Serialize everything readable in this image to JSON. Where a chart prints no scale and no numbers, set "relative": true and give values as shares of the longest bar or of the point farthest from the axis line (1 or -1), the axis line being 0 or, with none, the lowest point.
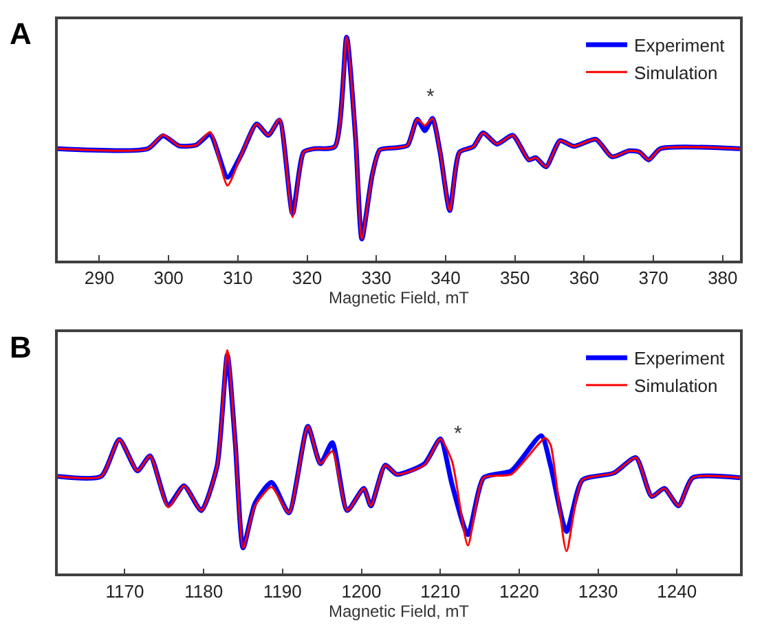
{
  "chart_data": [
    {
      "type": "line",
      "title": "A",
      "xlabel": "Magnetic Field, mT",
      "relative": true,
      "xlim": [
        284,
        382.5
      ],
      "xticks": [
        290,
        300,
        310,
        320,
        330,
        340,
        350,
        360,
        370,
        380
      ],
      "legend": "top right",
      "annotations": [
        {
          "text": "*",
          "x": 337,
          "y": 0.604
        }
      ],
      "series": [
        {
          "name": "Experiment",
          "color": "#0000ff",
          "x": [
            284,
            297,
            299.2,
            301.5,
            304,
            306,
            308.5,
            310.5,
            312.7,
            314.4,
            316,
            317.9,
            319.5,
            321,
            324,
            325.7,
            327,
            327.9,
            329.4,
            330.5,
            333,
            334.5,
            335.9,
            337,
            338.1,
            339.2,
            340.6,
            342,
            344,
            345.4,
            347.4,
            349.7,
            352,
            353,
            354.5,
            356.5,
            358.5,
            361.7,
            364,
            366.5,
            368,
            369.3,
            371,
            382.5
          ],
          "values": [
            0.5,
            0.5,
            0.558,
            0.513,
            0.517,
            0.564,
            0.372,
            0.474,
            0.611,
            0.56,
            0.628,
            0.209,
            0.485,
            0.5,
            0.509,
            1.0,
            0.546,
            0.096,
            0.382,
            0.495,
            0.505,
            0.515,
            0.632,
            0.581,
            0.636,
            0.485,
            0.223,
            0.485,
            0.509,
            0.571,
            0.521,
            0.56,
            0.45,
            0.46,
            0.419,
            0.536,
            0.511,
            0.542,
            0.464,
            0.491,
            0.485,
            0.45,
            0.5,
            0.5
          ]
        },
        {
          "name": "Simulation",
          "color": "#ff0000",
          "x": [
            284,
            297,
            299.2,
            301.5,
            304,
            306,
            308.5,
            310.5,
            312.7,
            314.4,
            316,
            317.9,
            319.5,
            321,
            324,
            325.7,
            327,
            327.9,
            329.4,
            330.5,
            333,
            334.5,
            335.9,
            337,
            338.1,
            339.2,
            340.6,
            342,
            344,
            345.4,
            347.4,
            349.7,
            352,
            353,
            354.5,
            356.5,
            358.5,
            361.7,
            364,
            366.5,
            368,
            369.3,
            371,
            382.5
          ],
          "values": [
            0.5,
            0.5,
            0.562,
            0.513,
            0.517,
            0.575,
            0.335,
            0.474,
            0.611,
            0.56,
            0.632,
            0.194,
            0.485,
            0.5,
            0.509,
            1.0,
            0.546,
            0.096,
            0.382,
            0.495,
            0.505,
            0.515,
            0.632,
            0.604,
            0.636,
            0.485,
            0.223,
            0.485,
            0.509,
            0.571,
            0.521,
            0.56,
            0.45,
            0.46,
            0.419,
            0.536,
            0.511,
            0.542,
            0.464,
            0.491,
            0.485,
            0.45,
            0.5,
            0.5
          ]
        }
      ]
    },
    {
      "type": "line",
      "title": "B",
      "xlabel": "Magnetic Field, mT",
      "relative": true,
      "xlim": [
        1161.5,
        1248
      ],
      "xticks": [
        1170,
        1180,
        1190,
        1200,
        1210,
        1220,
        1230,
        1240
      ],
      "legend": "top right",
      "annotations": [
        {
          "text": "*",
          "x": 1211.5,
          "y": 0.502
        }
      ],
      "series": [
        {
          "name": "Experiment",
          "color": "#0000ff",
          "x": [
            1161.5,
            1167,
            1169.3,
            1171.6,
            1173.2,
            1175.5,
            1177.5,
            1179.7,
            1181.7,
            1183,
            1184,
            1185,
            1186.5,
            1188.6,
            1190.8,
            1193.2,
            1194.8,
            1196.3,
            1198.2,
            1200.3,
            1201.2,
            1203,
            1204.5,
            1208,
            1210,
            1211.5,
            1213.5,
            1215.5,
            1219,
            1222.8,
            1224,
            1226,
            1228,
            1232,
            1234.8,
            1236.8,
            1238.4,
            1240.2,
            1242,
            1248
          ],
          "values": [
            0.435,
            0.435,
            0.6,
            0.46,
            0.527,
            0.305,
            0.393,
            0.282,
            0.481,
            0.979,
            0.586,
            0.115,
            0.314,
            0.408,
            0.272,
            0.659,
            0.492,
            0.586,
            0.282,
            0.381,
            0.303,
            0.485,
            0.444,
            0.492,
            0.603,
            0.397,
            0.174,
            0.429,
            0.46,
            0.617,
            0.481,
            0.188,
            0.418,
            0.45,
            0.519,
            0.345,
            0.381,
            0.303,
            0.429,
            0.429
          ]
        },
        {
          "name": "Simulation",
          "color": "#ff0000",
          "x": [
            1161.5,
            1167,
            1169.3,
            1171.6,
            1173.2,
            1175.5,
            1177.5,
            1179.7,
            1181.7,
            1183,
            1184,
            1185,
            1186.5,
            1188.6,
            1190.8,
            1193.2,
            1194.8,
            1196.3,
            1198.2,
            1200.3,
            1201.2,
            1203,
            1204.5,
            1208,
            1210,
            1211.5,
            1213.5,
            1215.5,
            1219,
            1223.3,
            1224,
            1226,
            1228,
            1232,
            1234.8,
            1236.8,
            1238.4,
            1240.2,
            1242,
            1248
          ],
          "values": [
            0.435,
            0.435,
            0.6,
            0.46,
            0.527,
            0.297,
            0.393,
            0.282,
            0.481,
            1.0,
            0.586,
            0.115,
            0.303,
            0.387,
            0.272,
            0.659,
            0.492,
            0.548,
            0.282,
            0.381,
            0.303,
            0.485,
            0.444,
            0.487,
            0.603,
            0.502,
            0.126,
            0.429,
            0.444,
            0.607,
            0.575,
            0.1,
            0.418,
            0.45,
            0.519,
            0.345,
            0.381,
            0.303,
            0.429,
            0.429
          ]
        }
      ]
    }
  ]
}
